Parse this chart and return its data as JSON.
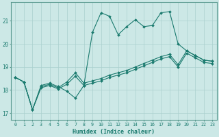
{
  "xlabel": "Humidex (Indice chaleur)",
  "bg_color": "#cce8e6",
  "grid_color": "#aad0ce",
  "line_color": "#1a7a6e",
  "xlim": [
    -0.5,
    23.5
  ],
  "ylim": [
    16.7,
    21.8
  ],
  "yticks": [
    17,
    18,
    19,
    20,
    21
  ],
  "xticks": [
    0,
    1,
    2,
    3,
    4,
    5,
    6,
    7,
    8,
    9,
    10,
    11,
    12,
    13,
    14,
    15,
    16,
    17,
    18,
    19,
    20,
    21,
    22,
    23
  ],
  "line1_x": [
    0,
    1,
    2,
    3,
    4,
    5,
    6,
    7,
    8,
    9,
    10,
    11,
    12,
    13,
    14,
    15,
    16,
    17,
    18,
    19,
    20,
    21,
    22,
    23
  ],
  "line1_y": [
    18.55,
    18.35,
    17.15,
    18.2,
    18.3,
    18.15,
    17.95,
    17.65,
    18.2,
    20.5,
    21.35,
    21.2,
    20.4,
    20.75,
    21.05,
    20.75,
    20.8,
    21.35,
    21.4,
    20.0,
    19.7,
    19.5,
    19.3,
    19.25
  ],
  "line2_x": [
    0,
    1,
    2,
    3,
    4,
    5,
    6,
    7,
    8,
    9,
    10,
    11,
    12,
    13,
    14,
    15,
    16,
    17,
    18,
    19,
    20,
    21,
    22,
    23
  ],
  "line2_y": [
    18.55,
    18.35,
    17.15,
    18.15,
    18.25,
    18.1,
    18.35,
    18.75,
    18.3,
    18.4,
    18.5,
    18.65,
    18.75,
    18.85,
    19.0,
    19.15,
    19.3,
    19.45,
    19.55,
    19.1,
    19.7,
    19.5,
    19.3,
    19.25
  ],
  "line3_x": [
    0,
    1,
    2,
    3,
    4,
    5,
    6,
    7,
    8,
    9,
    10,
    11,
    12,
    13,
    14,
    15,
    16,
    17,
    18,
    19,
    20,
    21,
    22,
    23
  ],
  "line3_y": [
    18.55,
    18.35,
    17.15,
    18.1,
    18.2,
    18.05,
    18.25,
    18.6,
    18.2,
    18.3,
    18.4,
    18.55,
    18.65,
    18.75,
    18.9,
    19.05,
    19.2,
    19.35,
    19.45,
    19.0,
    19.6,
    19.4,
    19.2,
    19.15
  ]
}
